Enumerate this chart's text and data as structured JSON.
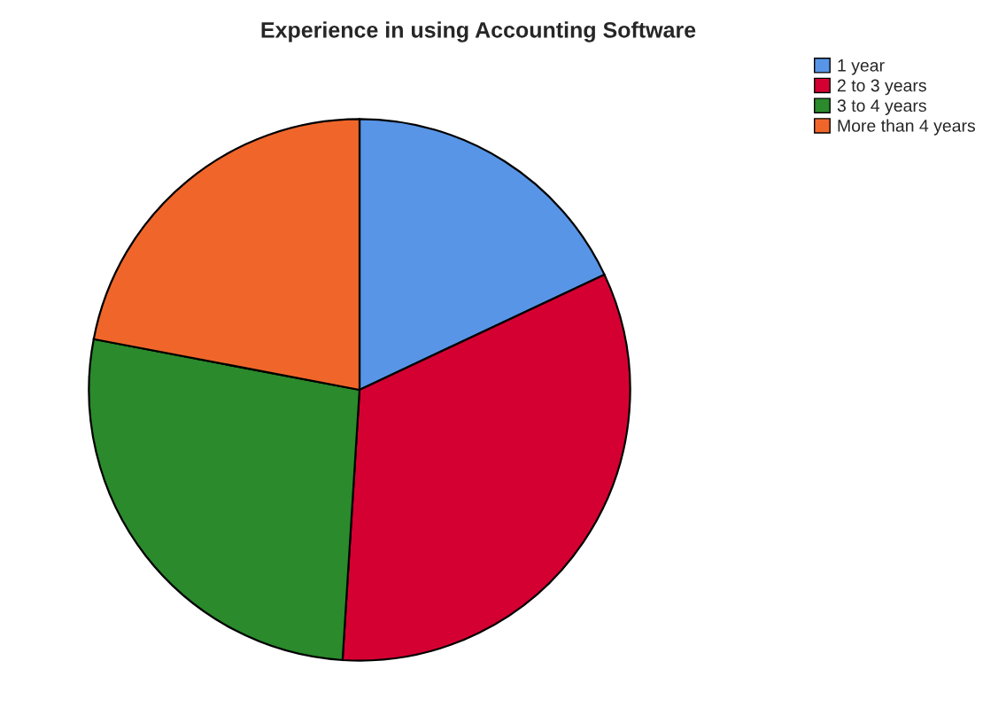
{
  "chart_data": {
    "type": "pie",
    "title": "Experience in using Accounting Software",
    "categories": [
      "1 year",
      "2 to 3 years",
      "3 to 4 years",
      "More than 4 years"
    ],
    "values": [
      18,
      33,
      27,
      22
    ],
    "colors": [
      "#5895e6",
      "#d50032",
      "#2a8a2c",
      "#f0662a"
    ],
    "legend": "top right"
  }
}
